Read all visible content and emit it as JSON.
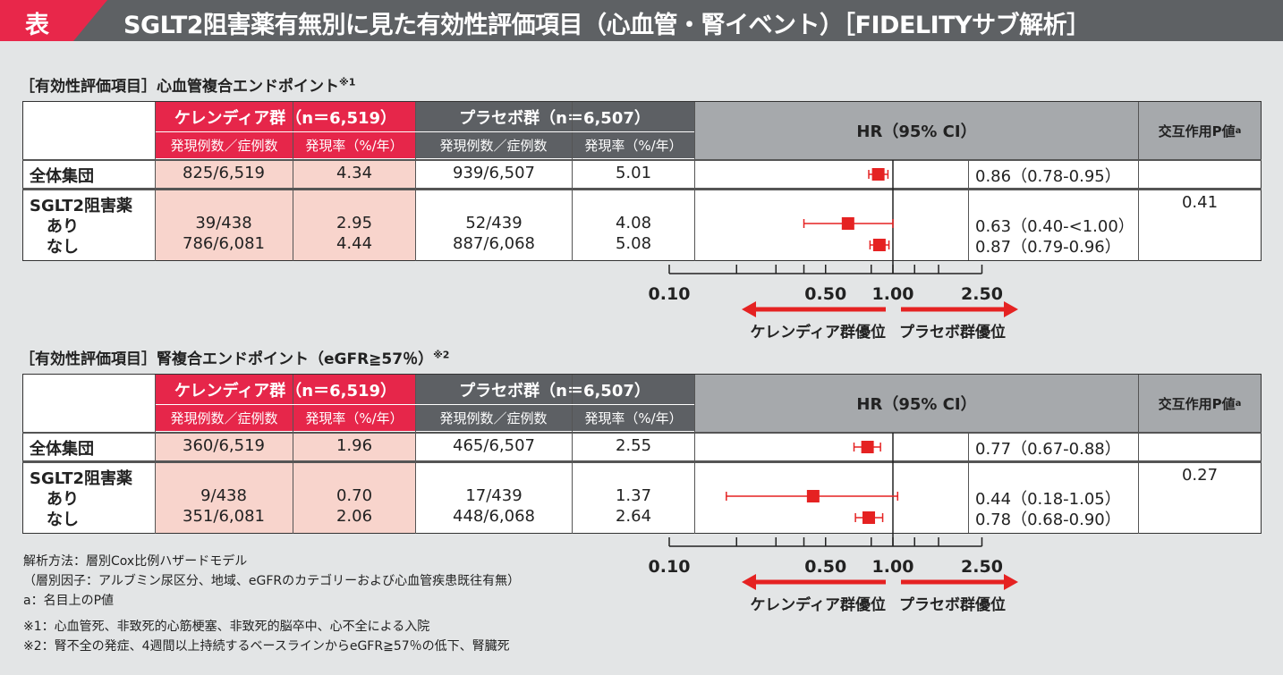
{
  "title": {
    "mark": "表",
    "text": "SGLT2阻害薬有無別に見た有効性評価項目（心血管・腎イベント）［FIDELITYサブ解析］"
  },
  "colors": {
    "red": "#e6264a",
    "marker": "#e52222",
    "pink": "#f8d4cc",
    "dark_gray": "#5d6064",
    "light_gray": "#a6a9ac",
    "background": "#e3e5e6"
  },
  "header": {
    "kerendia": "ケレンディア群（n＝6,519）",
    "placebo": "プラセボ群（n＝6,507）",
    "events": "発現例数／症例数",
    "rate": "発現率（%/年）",
    "hr": "HR（95% CI）",
    "p": "交互作用P値",
    "p_sup": "a"
  },
  "rows_labels": {
    "overall": "全体集団",
    "sglt2": "SGLT2阻害薬",
    "yes": "あり",
    "no": "なし"
  },
  "axis": {
    "favors_kerendia": "ケレンディア群優位",
    "favors_placebo": "プラセボ群優位"
  },
  "sections": [
    {
      "title": "［有効性評価項目］心血管複合エンドポイント",
      "sup": "※1",
      "p_value": "0.41",
      "rows": [
        {
          "k_events": "825/6,519",
          "k_rate": "4.34",
          "p_events": "939/6,507",
          "p_rate": "5.01",
          "hr_text": "0.86（0.78-0.95）"
        },
        {
          "k_events": "39/438",
          "k_rate": "2.95",
          "p_events": "52/439",
          "p_rate": "4.08",
          "hr_text": "0.63（0.40-<1.00）"
        },
        {
          "k_events": "786/6,081",
          "k_rate": "4.44",
          "p_events": "887/6,068",
          "p_rate": "5.08",
          "hr_text": "0.87（0.79-0.96）"
        }
      ]
    },
    {
      "title": "［有効性評価項目］腎複合エンドポイント（eGFR≧57％）",
      "sup": "※2",
      "p_value": "0.27",
      "rows": [
        {
          "k_events": "360/6,519",
          "k_rate": "1.96",
          "p_events": "465/6,507",
          "p_rate": "2.55",
          "hr_text": "0.77（0.67-0.88）"
        },
        {
          "k_events": "9/438",
          "k_rate": "0.70",
          "p_events": "17/439",
          "p_rate": "1.37",
          "hr_text": "0.44（0.18-1.05）"
        },
        {
          "k_events": "351/6,081",
          "k_rate": "2.06",
          "p_events": "448/6,068",
          "p_rate": "2.64",
          "hr_text": "0.78（0.68-0.90）"
        }
      ]
    }
  ],
  "chart_data": [
    {
      "type": "scatter",
      "subtype": "forest",
      "x_scale": "log",
      "xlim": [
        0.1,
        2.5
      ],
      "reference": 1.0,
      "tick_labels": [
        "0.10",
        "0.50",
        "1.00",
        "2.50"
      ],
      "ticks": [
        0.1,
        0.2,
        0.3,
        0.4,
        0.5,
        0.8,
        1.0,
        1.25,
        1.6,
        2.5
      ],
      "categories": [
        "全体集団",
        "あり",
        "なし"
      ],
      "hr": [
        0.86,
        0.63,
        0.87
      ],
      "lower": [
        0.78,
        0.4,
        0.79
      ],
      "upper": [
        0.95,
        1.0,
        0.96
      ]
    },
    {
      "type": "scatter",
      "subtype": "forest",
      "x_scale": "log",
      "xlim": [
        0.1,
        2.5
      ],
      "reference": 1.0,
      "tick_labels": [
        "0.10",
        "0.50",
        "1.00",
        "2.50"
      ],
      "ticks": [
        0.1,
        0.2,
        0.3,
        0.4,
        0.5,
        0.8,
        1.0,
        1.25,
        1.6,
        2.5
      ],
      "categories": [
        "全体集団",
        "あり",
        "なし"
      ],
      "hr": [
        0.77,
        0.44,
        0.78
      ],
      "lower": [
        0.67,
        0.18,
        0.68
      ],
      "upper": [
        0.88,
        1.05,
        0.9
      ]
    }
  ],
  "footnotes": [
    "解析方法：層別Cox比例ハザードモデル",
    "（層別因子：アルブミン尿区分、地域、eGFRのカテゴリーおよび心血管疾患既往有無）",
    "a：名目上のP値",
    "※1：心血管死、非致死的心筋梗塞、非致死的脳卒中、心不全による入院",
    "※2：腎不全の発症、4週間以上持続するベースラインからeGFR≧57％の低下、腎臓死"
  ]
}
